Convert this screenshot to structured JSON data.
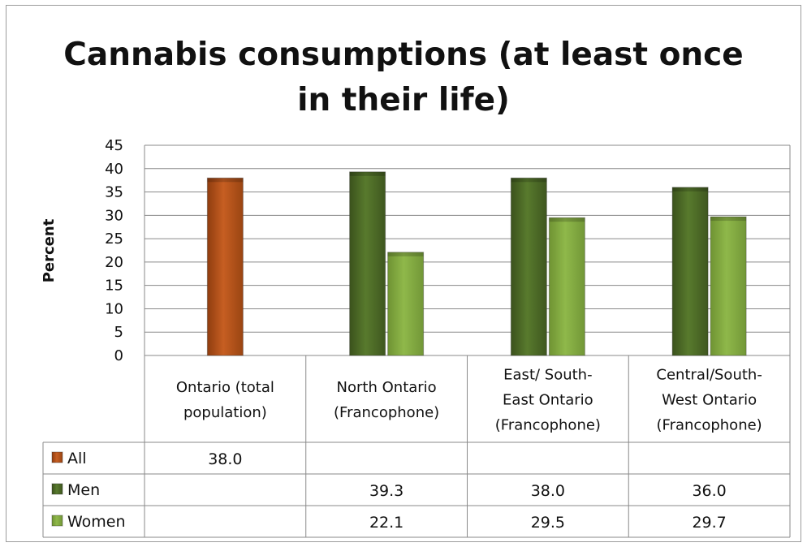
{
  "chart_data": {
    "type": "bar",
    "title_lines": [
      "Cannabis consumptions (at least once",
      "in their life)"
    ],
    "ylabel": "Percent",
    "ylim": [
      0,
      45
    ],
    "yticks": [
      0,
      5,
      10,
      15,
      20,
      25,
      30,
      35,
      40,
      45
    ],
    "grid": true,
    "legend": "data-table",
    "categories": [
      [
        "Ontario (total",
        "population)"
      ],
      [
        "North Ontario",
        "(Francophone)"
      ],
      [
        "East/ South-",
        "East Ontario",
        "(Francophone)"
      ],
      [
        "Central/South-",
        "West Ontario",
        "(Francophone)"
      ]
    ],
    "series": [
      {
        "name": "All",
        "color": "#c0561b",
        "values": [
          38.0,
          null,
          null,
          null
        ],
        "labels": [
          "38.0",
          "",
          "",
          ""
        ]
      },
      {
        "name": "Men",
        "color": "#4f6b28",
        "values": [
          null,
          39.3,
          38.0,
          36.0
        ],
        "labels": [
          "",
          "39.3",
          "38.0",
          "36.0"
        ]
      },
      {
        "name": "Women",
        "color": "#85ad3f",
        "values": [
          null,
          22.1,
          29.5,
          29.7
        ],
        "labels": [
          "",
          "22.1",
          "29.5",
          "29.7"
        ]
      }
    ]
  }
}
